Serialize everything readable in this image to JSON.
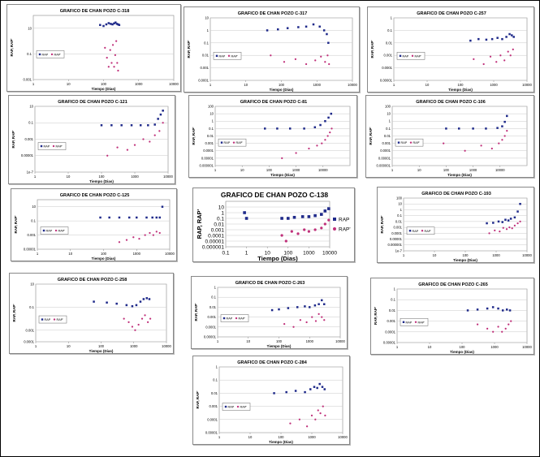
{
  "ylabel_default": "RAP, RAP'",
  "xlabel_default": "Tiempo (Dias)",
  "legend_default": [
    "RAP",
    "RAP'"
  ],
  "colors": {
    "rap": "#1f2a8a",
    "rap_prime": "#c0307a",
    "grid": "#c8c8c8"
  },
  "chart_data": [
    {
      "type": "scatter",
      "title": "GRAFICO DE CHAN POZO C-318",
      "xlog": true,
      "ylog": true,
      "xticks": [
        1,
        10,
        100,
        1000,
        10000
      ],
      "yticks": [
        0.001,
        0.1,
        10
      ],
      "xlim": [
        1,
        10000
      ],
      "ylim": [
        0.001,
        100
      ],
      "xlabel": "Tiempo (Dias)",
      "ylabel": "RAP, RAP'",
      "legend": [
        "RAP",
        "RAP'"
      ],
      "series": [
        {
          "name": "RAP",
          "x": [
            80,
            100,
            120,
            140,
            160,
            180,
            200,
            220,
            240,
            260,
            280
          ],
          "y": [
            18,
            15,
            20,
            25,
            22,
            20,
            24,
            28,
            22,
            20,
            18
          ]
        },
        {
          "name": "RAP'",
          "x": [
            110,
            125,
            140,
            155,
            170,
            185,
            200,
            215,
            230,
            245,
            260
          ],
          "y": [
            0.3,
            0.05,
            0.01,
            0.2,
            0.02,
            0.5,
            0.01,
            0.08,
            1,
            0.02,
            0.005
          ]
        }
      ]
    },
    {
      "type": "scatter",
      "title": "GRAFICO DE CHAN POZO C-317",
      "xlog": true,
      "ylog": true,
      "xticks": [
        1,
        10,
        100,
        1000,
        10000
      ],
      "yticks": [
        0.0001,
        0.001,
        0.01,
        0.1,
        1,
        10
      ],
      "xlim": [
        1,
        10000
      ],
      "ylim": [
        0.0001,
        10
      ],
      "xlabel": "Tiempo (Dias)",
      "ylabel": "RAP, RAP'",
      "legend": [
        "RAP",
        "RAP'"
      ],
      "series": [
        {
          "name": "RAP",
          "x": [
            40,
            80,
            150,
            300,
            500,
            800,
            1200,
            1600,
            1900,
            2100
          ],
          "y": [
            1,
            1.2,
            1.5,
            1.8,
            2,
            3,
            2,
            1,
            0.5,
            0.1
          ]
        },
        {
          "name": "RAP'",
          "x": [
            50,
            120,
            250,
            500,
            900,
            1300,
            1700,
            2000,
            2200
          ],
          "y": [
            0.01,
            0.003,
            0.005,
            0.002,
            0.004,
            0.008,
            0.003,
            0.01,
            0.002
          ]
        }
      ]
    },
    {
      "type": "scatter",
      "title": "GRAFICO DE CHAN POZO C-257",
      "xlog": true,
      "ylog": true,
      "xticks": [
        1,
        10,
        100,
        1000,
        10000
      ],
      "yticks": [
        1e-05,
        0.0001,
        0.001,
        0.01,
        0.1,
        1
      ],
      "xlim": [
        1,
        10000
      ],
      "ylim": [
        1e-05,
        1
      ],
      "xlabel": "Tiempo (Dias)",
      "ylabel": "RAP, RAP'",
      "legend": [
        "RAP",
        "RAP'"
      ],
      "series": [
        {
          "name": "RAP",
          "x": [
            200,
            350,
            600,
            900,
            1300,
            1800,
            2400,
            3000,
            3500,
            4000
          ],
          "y": [
            0.015,
            0.02,
            0.018,
            0.02,
            0.025,
            0.02,
            0.03,
            0.05,
            0.04,
            0.03
          ]
        },
        {
          "name": "RAP'",
          "x": [
            250,
            500,
            800,
            1200,
            1600,
            2100,
            2700,
            3200,
            3800
          ],
          "y": [
            0.0005,
            0.0002,
            0.0008,
            0.0003,
            0.001,
            0.0004,
            0.002,
            0.001,
            0.003
          ]
        }
      ]
    },
    {
      "type": "scatter",
      "title": "GRAFICO DE CHAN POZO C-121",
      "xlog": true,
      "ylog": true,
      "xticks": [
        1,
        10,
        100,
        1000,
        10000
      ],
      "yticks": [
        1e-07,
        1e-05,
        0.001,
        0.1,
        10
      ],
      "xlim": [
        1,
        10000
      ],
      "ylim": [
        1e-07,
        10
      ],
      "xlabel": "Tiempo (Dias)",
      "ylabel": "RAP, RAP'",
      "legend": [
        "RAP",
        "RAP'"
      ],
      "series": [
        {
          "name": "RAP",
          "x": [
            100,
            200,
            400,
            800,
            1500,
            2500,
            4000,
            5000,
            6000,
            7000
          ],
          "y": [
            0.05,
            0.05,
            0.05,
            0.05,
            0.05,
            0.05,
            0.06,
            0.3,
            1,
            3
          ]
        },
        {
          "name": "RAP'",
          "x": [
            150,
            300,
            600,
            1000,
            1800,
            2800,
            4000,
            5500,
            7000
          ],
          "y": [
            1e-05,
            0.0001,
            5e-05,
            0.0002,
            0.001,
            0.0005,
            0.003,
            0.01,
            0.1
          ]
        }
      ]
    },
    {
      "type": "scatter",
      "title": "GRAFICO DE CHAN POZO C-81",
      "xlog": true,
      "ylog": true,
      "xticks": [
        1,
        10,
        100,
        1000,
        10000
      ],
      "yticks": [
        1e-06,
        1e-05,
        0.0001,
        0.001,
        0.01,
        0.1,
        1,
        10,
        100
      ],
      "xlim": [
        1,
        100000
      ],
      "ylim": [
        1e-06,
        100
      ],
      "xlabel": "Tiempo (Dias)",
      "ylabel": "RAP, RAP'",
      "legend": [
        "RAP",
        "RAP'"
      ],
      "series": [
        {
          "name": "RAP",
          "x": [
            70,
            200,
            600,
            2000,
            5000,
            8000,
            12000,
            16000,
            20000
          ],
          "y": [
            0.1,
            0.1,
            0.1,
            0.1,
            0.15,
            0.3,
            1,
            3,
            10
          ]
        },
        {
          "name": "RAP'",
          "x": [
            300,
            1000,
            3000,
            6000,
            9000,
            12000,
            15000,
            18000,
            21000
          ],
          "y": [
            1e-05,
            5e-05,
            0.0002,
            0.0005,
            0.001,
            0.003,
            0.01,
            0.03,
            0.1
          ]
        }
      ]
    },
    {
      "type": "scatter",
      "title": "GRAFICO DE CHAN POZO C-106",
      "xlog": true,
      "ylog": true,
      "xticks": [
        1,
        10,
        100,
        1000,
        10000
      ],
      "yticks": [
        1e-06,
        1e-05,
        0.0001,
        0.001,
        0.01,
        0.1,
        1,
        10,
        100
      ],
      "xlim": [
        1,
        100000
      ],
      "ylim": [
        1e-06,
        100
      ],
      "xlabel": "Tiempo (Dias)",
      "ylabel": "RAP, RAP'",
      "legend": [
        "RAP",
        "RAP'"
      ],
      "series": [
        {
          "name": "RAP",
          "x": [
            100,
            300,
            1000,
            3000,
            8000,
            12000,
            15000,
            18000
          ],
          "y": [
            0.1,
            0.1,
            0.1,
            0.1,
            0.12,
            0.2,
            0.8,
            5
          ]
        },
        {
          "name": "RAP'",
          "x": [
            80,
            500,
            2000,
            5000,
            9000,
            12000,
            15000,
            18000
          ],
          "y": [
            0.001,
            0.0001,
            0.0005,
            0.0002,
            0.001,
            0.003,
            0.01,
            0.05
          ]
        }
      ]
    },
    {
      "type": "scatter",
      "title": "GRAFICO DE CHAN POZO C-125",
      "xlog": true,
      "ylog": true,
      "xticks": [
        1,
        10,
        100,
        1000,
        10000
      ],
      "yticks": [
        1e-05,
        0.001,
        0.1,
        10
      ],
      "xlim": [
        1,
        10000
      ],
      "ylim": [
        1e-05,
        100
      ],
      "xlabel": "Tiempo (Dias)",
      "ylabel": "RAP, RAP'",
      "legend": [
        "RAP",
        "RAP'"
      ],
      "series": [
        {
          "name": "RAP",
          "x": [
            80,
            150,
            300,
            600,
            1000,
            2000,
            3000,
            4000,
            5000,
            6000
          ],
          "y": [
            0.3,
            0.3,
            0.3,
            0.3,
            0.3,
            0.3,
            0.3,
            0.3,
            0.3,
            10
          ]
        },
        {
          "name": "RAP'",
          "x": [
            300,
            500,
            800,
            1200,
            1800,
            2500,
            3200,
            4000,
            5000
          ],
          "y": [
            0.0001,
            0.0002,
            0.0005,
            0.0003,
            0.001,
            0.002,
            0.001,
            0.003,
            0.002
          ]
        }
      ]
    },
    {
      "type": "scatter",
      "title": "GRAFICO DE CHAN POZO C-138",
      "xlog": true,
      "ylog": true,
      "xticks": [
        0.1,
        1,
        10,
        100,
        1000,
        10000
      ],
      "yticks": [
        1e-06,
        1e-05,
        0.0001,
        0.001,
        0.01,
        0.1,
        1,
        10
      ],
      "xlim": [
        0.1,
        10000
      ],
      "ylim": [
        1e-06,
        100
      ],
      "xlabel": "Tiempo (Dias)",
      "ylabel": "RAP, RAP'",
      "legend": [
        "RAP",
        "RAP'"
      ],
      "legend_position": "right",
      "big": true,
      "series": [
        {
          "name": "RAP",
          "x": [
            0.8,
            1,
            50,
            100,
            200,
            500,
            1000,
            2000,
            4000,
            6000,
            9000
          ],
          "y": [
            1,
            0.1,
            0.1,
            0.1,
            0.15,
            0.2,
            0.2,
            0.3,
            0.5,
            2,
            5
          ]
        },
        {
          "name": "RAP'",
          "x": [
            50,
            80,
            150,
            300,
            600,
            1000,
            2000,
            4000,
            6000,
            9000
          ],
          "y": [
            0.0001,
            1e-05,
            0.0005,
            0.0002,
            0.001,
            0.0005,
            0.001,
            0.002,
            0.01,
            0.05
          ]
        }
      ]
    },
    {
      "type": "scatter",
      "title": "GRAFICO DE CHAN POZO C-193",
      "xlog": true,
      "ylog": true,
      "xticks": [
        1,
        10,
        100,
        1000,
        10000
      ],
      "yticks": [
        1e-07,
        1e-06,
        1e-05,
        0.0001,
        0.001,
        0.01,
        0.1,
        1,
        10,
        100
      ],
      "xlim": [
        1,
        10000
      ],
      "ylim": [
        1e-07,
        100
      ],
      "xlabel": "Tiempo (Dias)",
      "ylabel": "RAP, RAP'",
      "legend": [
        "RAP",
        "RAP'"
      ],
      "series": [
        {
          "name": "RAP",
          "x": [
            500,
            800,
            1200,
            1600,
            2000,
            2500,
            3000,
            4000,
            5000,
            6000
          ],
          "y": [
            0.005,
            0.006,
            0.01,
            0.008,
            0.02,
            0.015,
            0.03,
            0.05,
            0.5,
            10
          ]
        },
        {
          "name": "RAP'",
          "x": [
            600,
            900,
            1300,
            1700,
            2200,
            2700,
            3300,
            4000,
            5000,
            6000
          ],
          "y": [
            0.0001,
            0.0003,
            0.0002,
            0.0008,
            0.0005,
            0.001,
            0.0007,
            0.002,
            0.005,
            0.01
          ]
        }
      ]
    },
    {
      "type": "scatter",
      "title": "GRAFICO DE CHAN POZO C-258",
      "xlog": true,
      "ylog": true,
      "xticks": [
        1,
        10,
        100,
        1000,
        10000
      ],
      "yticks": [
        0.0001,
        0.001,
        0.1,
        10
      ],
      "xlim": [
        1,
        10000
      ],
      "ylim": [
        0.0001,
        10
      ],
      "xlabel": "Tiempo (Dias)",
      "ylabel": "RAP, RAP'",
      "legend": [
        "RAP",
        "RAP'"
      ],
      "series": [
        {
          "name": "RAP",
          "x": [
            60,
            150,
            300,
            600,
            900,
            1200,
            1600,
            2000,
            2500,
            3000
          ],
          "y": [
            0.3,
            0.25,
            0.2,
            0.15,
            0.12,
            0.15,
            0.3,
            0.5,
            0.6,
            0.5
          ]
        },
        {
          "name": "RAP'",
          "x": [
            500,
            700,
            900,
            1100,
            1400,
            1800,
            2200,
            2700,
            3200
          ],
          "y": [
            0.01,
            0.005,
            0.002,
            0.001,
            0.003,
            0.01,
            0.02,
            0.005,
            0.01
          ]
        }
      ]
    },
    {
      "type": "scatter",
      "title": "GRAFICO DE CHAN POZO C-263",
      "xlog": true,
      "ylog": true,
      "xticks": [
        1,
        10,
        100,
        1000,
        10000
      ],
      "yticks": [
        1e-05,
        0.0001,
        0.001,
        0.01,
        0.1,
        1
      ],
      "xlim": [
        1,
        10000
      ],
      "ylim": [
        1e-05,
        1
      ],
      "xlabel": "Tiempo (Dias)",
      "ylabel": "RAP, RAP'",
      "legend": [
        "RAP",
        "RAP'"
      ],
      "series": [
        {
          "name": "RAP",
          "x": [
            60,
            100,
            200,
            400,
            700,
            1000,
            1500,
            2000,
            2500,
            3000
          ],
          "y": [
            0.005,
            0.006,
            0.008,
            0.01,
            0.012,
            0.01,
            0.015,
            0.02,
            0.05,
            0.02
          ]
        },
        {
          "name": "RAP'",
          "x": [
            150,
            300,
            500,
            800,
            1200,
            1600,
            2000,
            2500,
            3000
          ],
          "y": [
            0.0002,
            0.0001,
            0.0005,
            0.0003,
            0.001,
            0.0004,
            0.002,
            0.001,
            0.0005
          ]
        }
      ]
    },
    {
      "type": "scatter",
      "title": "GRAFICO DE CHAN POZO C-265",
      "xlog": true,
      "ylog": true,
      "xticks": [
        1,
        10,
        100,
        1000,
        10000
      ],
      "yticks": [
        1e-05,
        0.0001,
        0.001,
        0.01,
        0.1,
        1
      ],
      "xlim": [
        1,
        10000
      ],
      "ylim": [
        1e-05,
        1
      ],
      "xlabel": "Tiempo (Dias)",
      "ylabel": "RAP, RAP'",
      "legend": [
        "RAP",
        "RAP'"
      ],
      "series": [
        {
          "name": "RAP",
          "x": [
            150,
            300,
            600,
            900,
            1300,
            1800,
            2400,
            3000
          ],
          "y": [
            0.01,
            0.012,
            0.015,
            0.02,
            0.015,
            0.01,
            0.012,
            0.01
          ]
        },
        {
          "name": "RAP'",
          "x": [
            300,
            600,
            900,
            1300,
            1700,
            2200,
            2700,
            3200
          ],
          "y": [
            0.0005,
            0.0002,
            0.0001,
            0.0003,
            0.0001,
            0.0002,
            0.0005,
            0.001
          ]
        }
      ]
    },
    {
      "type": "scatter",
      "title": "GRAFICO DE CHAN POZO C-284",
      "xlog": true,
      "ylog": true,
      "xticks": [
        1,
        10,
        100,
        1000,
        10000
      ],
      "yticks": [
        1e-05,
        0.0001,
        0.001,
        0.01,
        0.1,
        1
      ],
      "xlim": [
        1,
        10000
      ],
      "ylim": [
        1e-05,
        1
      ],
      "xlabel": "Tiempo (Dias)",
      "ylabel": "RAP, RAP'",
      "legend": [
        "RAP",
        "RAP'"
      ],
      "series": [
        {
          "name": "RAP",
          "x": [
            60,
            150,
            300,
            600,
            900,
            1200,
            1500,
            1800,
            2200,
            2600
          ],
          "y": [
            0.01,
            0.012,
            0.015,
            0.012,
            0.02,
            0.03,
            0.025,
            0.05,
            0.03,
            0.02
          ]
        },
        {
          "name": "RAP'",
          "x": [
            200,
            400,
            700,
            1000,
            1300,
            1600,
            1900,
            2300,
            2700
          ],
          "y": [
            5e-05,
            0.0001,
            3e-05,
            0.0002,
            0.0001,
            0.0005,
            0.0003,
            0.001,
            0.0002
          ]
        }
      ]
    }
  ]
}
